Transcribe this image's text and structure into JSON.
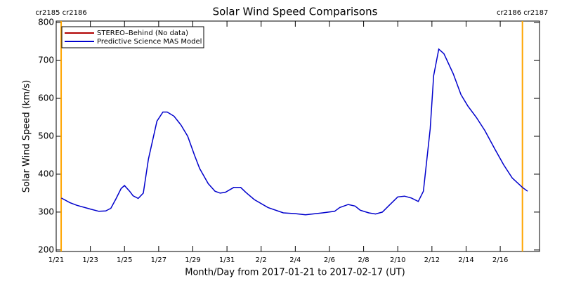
{
  "chart_data": {
    "type": "line",
    "title": "Solar Wind Speed Comparisons",
    "x_label": "Month/Day from 2017-01-21 to 2017-02-17 (UT)",
    "y_label": "Solar Wind Speed (km/s)",
    "xlim": [
      0,
      28.3
    ],
    "ylim": [
      196,
      804
    ],
    "xticks": [
      {
        "value": 0,
        "label": "1/21"
      },
      {
        "value": 2,
        "label": "1/23"
      },
      {
        "value": 4,
        "label": "1/25"
      },
      {
        "value": 6,
        "label": "1/27"
      },
      {
        "value": 8,
        "label": "1/29"
      },
      {
        "value": 10,
        "label": "1/31"
      },
      {
        "value": 12,
        "label": "2/2"
      },
      {
        "value": 14,
        "label": "2/4"
      },
      {
        "value": 16,
        "label": "2/6"
      },
      {
        "value": 18,
        "label": "2/8"
      },
      {
        "value": 20,
        "label": "2/10"
      },
      {
        "value": 22,
        "label": "2/12"
      },
      {
        "value": 24,
        "label": "2/14"
      },
      {
        "value": 26,
        "label": "2/16"
      }
    ],
    "yticks": [
      200,
      300,
      400,
      500,
      600,
      700,
      800
    ],
    "boundaries": [
      {
        "x": 0.29,
        "label": "cr2185 cr2186"
      },
      {
        "x": 27.3,
        "label": "cr2186 cr2187"
      }
    ],
    "boundary_color": "#ffa500",
    "legend": "upper left",
    "x": [
      0.3,
      0.8,
      1.2,
      2,
      2.5,
      2.9,
      3.2,
      3.5,
      3.8,
      4.0,
      4.3,
      4.5,
      4.8,
      5.1,
      5.4,
      5.9,
      6.25,
      6.5,
      6.9,
      7.3,
      7.7,
      8.1,
      8.4,
      8.9,
      9.3,
      9.6,
      9.9,
      10.4,
      10.8,
      11.1,
      11.6,
      12.4,
      13.3,
      14.0,
      14.6,
      15.6,
      16.3,
      16.6,
      17.1,
      17.5,
      17.8,
      18.3,
      18.7,
      19.1,
      19.5,
      20.0,
      20.4,
      20.8,
      21.2,
      21.5,
      21.9,
      22.1,
      22.4,
      22.7,
      23.25,
      23.7,
      24.1,
      24.6,
      25.1,
      25.7,
      26.2,
      26.7,
      27.3,
      27.6
    ],
    "series": [
      {
        "name": "STEREO–Behind (No data)",
        "color": "#b00000",
        "values": [
          null,
          null,
          null,
          null,
          null,
          null,
          null,
          null,
          null,
          null,
          null,
          null,
          null,
          null,
          null,
          null,
          null,
          null,
          null,
          null,
          null,
          null,
          null,
          null,
          null,
          null,
          null,
          null,
          null,
          null,
          null,
          null,
          null,
          null,
          null,
          null,
          null,
          null,
          null,
          null,
          null,
          null,
          null,
          null,
          null,
          null,
          null,
          null,
          null,
          null,
          null,
          null,
          null,
          null,
          null,
          null,
          null,
          null,
          null,
          null,
          null,
          null,
          null,
          null
        ]
      },
      {
        "name": "Predictive Science MAS Model",
        "color": "#0000cc",
        "values": [
          337,
          325,
          318,
          308,
          302,
          303,
          310,
          335,
          362,
          370,
          355,
          343,
          336,
          350,
          440,
          540,
          564,
          564,
          553,
          530,
          500,
          450,
          415,
          375,
          355,
          350,
          352,
          365,
          365,
          352,
          333,
          312,
          298,
          296,
          293,
          298,
          302,
          312,
          320,
          316,
          305,
          298,
          295,
          300,
          318,
          340,
          342,
          337,
          328,
          355,
          520,
          660,
          730,
          718,
          665,
          610,
          580,
          550,
          515,
          465,
          425,
          390,
          365,
          355
        ]
      }
    ]
  }
}
